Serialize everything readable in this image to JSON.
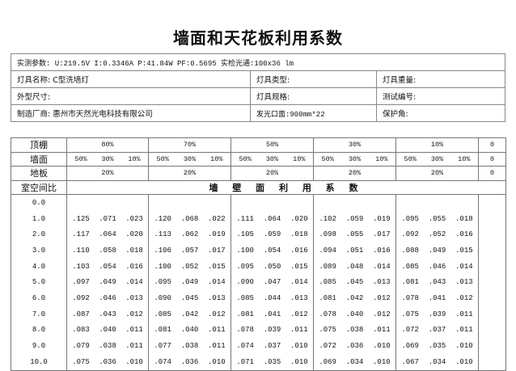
{
  "title": "墙面和天花板利用系数",
  "info": {
    "params": "实测参数: U:219.5V I:0.3346A P:41.84W PF:0.5695  实检光通:100x36 lm",
    "rows": [
      [
        "灯具名称: C型洗墙灯",
        "灯具类型:",
        "灯具重量:"
      ],
      [
        "外型尺寸:",
        "灯具规格:",
        "测试编号:"
      ],
      [
        "制造厂商: 惠州市天然光电科技有限公司",
        "发光口面:900mm*22",
        "保护角:"
      ]
    ]
  },
  "coef": {
    "ceiling_label": "顶棚",
    "wall_label": "墙面",
    "floor_label": "地板",
    "rcr_label": "室空间比",
    "section_title": "墙 壁 面 利 用 系 数",
    "ceiling": [
      "80%",
      "70%",
      "50%",
      "30%",
      "10%",
      "0"
    ],
    "wall": [
      "50%",
      "30%",
      "10%"
    ],
    "wall_zero": "0",
    "floor": [
      "20%",
      "20%",
      "20%",
      "20%",
      "20%",
      "0"
    ],
    "rows": [
      {
        "rcr": "0.0",
        "values": []
      },
      {
        "rcr": "1.0",
        "values": [
          ".125",
          ".071",
          ".023",
          ".120",
          ".068",
          ".022",
          ".111",
          ".064",
          ".020",
          ".102",
          ".059",
          ".019",
          ".095",
          ".055",
          ".018"
        ]
      },
      {
        "rcr": "2.0",
        "values": [
          ".117",
          ".064",
          ".020",
          ".113",
          ".062",
          ".019",
          ".105",
          ".059",
          ".018",
          ".098",
          ".055",
          ".017",
          ".092",
          ".052",
          ".016"
        ]
      },
      {
        "rcr": "3.0",
        "values": [
          ".110",
          ".058",
          ".018",
          ".106",
          ".057",
          ".017",
          ".100",
          ".054",
          ".016",
          ".094",
          ".051",
          ".016",
          ".088",
          ".049",
          ".015"
        ]
      },
      {
        "rcr": "4.0",
        "values": [
          ".103",
          ".054",
          ".016",
          ".100",
          ".052",
          ".015",
          ".095",
          ".050",
          ".015",
          ".089",
          ".048",
          ".014",
          ".085",
          ".046",
          ".014"
        ]
      },
      {
        "rcr": "5.0",
        "values": [
          ".097",
          ".049",
          ".014",
          ".095",
          ".049",
          ".014",
          ".090",
          ".047",
          ".014",
          ".085",
          ".045",
          ".013",
          ".081",
          ".043",
          ".013"
        ]
      },
      {
        "rcr": "6.0",
        "values": [
          ".092",
          ".046",
          ".013",
          ".090",
          ".045",
          ".013",
          ".085",
          ".044",
          ".013",
          ".081",
          ".042",
          ".012",
          ".078",
          ".041",
          ".012"
        ]
      },
      {
        "rcr": "7.0",
        "values": [
          ".087",
          ".043",
          ".012",
          ".085",
          ".042",
          ".012",
          ".081",
          ".041",
          ".012",
          ".078",
          ".040",
          ".012",
          ".075",
          ".039",
          ".011"
        ]
      },
      {
        "rcr": "8.0",
        "values": [
          ".083",
          ".040",
          ".011",
          ".081",
          ".040",
          ".011",
          ".078",
          ".039",
          ".011",
          ".075",
          ".038",
          ".011",
          ".072",
          ".037",
          ".011"
        ]
      },
      {
        "rcr": "9.0",
        "values": [
          ".079",
          ".038",
          ".011",
          ".077",
          ".038",
          ".011",
          ".074",
          ".037",
          ".010",
          ".072",
          ".036",
          ".010",
          ".069",
          ".035",
          ".010"
        ]
      },
      {
        "rcr": "10.0",
        "values": [
          ".075",
          ".036",
          ".010",
          ".074",
          ".036",
          ".010",
          ".071",
          ".035",
          ".010",
          ".069",
          ".034",
          ".010",
          ".067",
          ".034",
          ".010"
        ]
      }
    ]
  }
}
